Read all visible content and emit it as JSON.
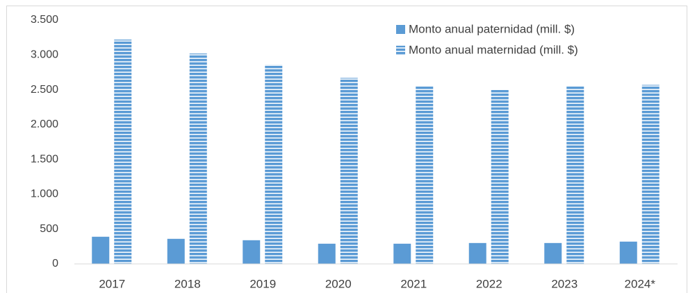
{
  "chart_data": {
    "type": "bar",
    "categories": [
      "2017",
      "2018",
      "2019",
      "2020",
      "2021",
      "2022",
      "2023",
      "2024*"
    ],
    "series": [
      {
        "name": "Monto anual paternidad (mill. $)",
        "color": "#5b9bd5",
        "values": [
          390,
          360,
          340,
          290,
          290,
          300,
          300,
          320
        ]
      },
      {
        "name": "Monto anual maternidad (mill. $)",
        "color": "#5b9bd5",
        "pattern": "horizontal-stripes",
        "values": [
          3220,
          3020,
          2860,
          2670,
          2560,
          2500,
          2550,
          2570
        ]
      }
    ],
    "ylim": [
      0,
      3500
    ],
    "yticks": [
      0,
      500,
      {
        "value": 1000,
        "label": "1.000"
      },
      {
        "value": 1500,
        "label": "1.500"
      },
      {
        "value": 2000,
        "label": "2.000"
      },
      {
        "value": 2500,
        "label": "2.500"
      },
      {
        "value": 3000,
        "label": "3.000"
      },
      {
        "value": 3500,
        "label": "3.500"
      }
    ],
    "grid": false,
    "legend": "top-right"
  }
}
